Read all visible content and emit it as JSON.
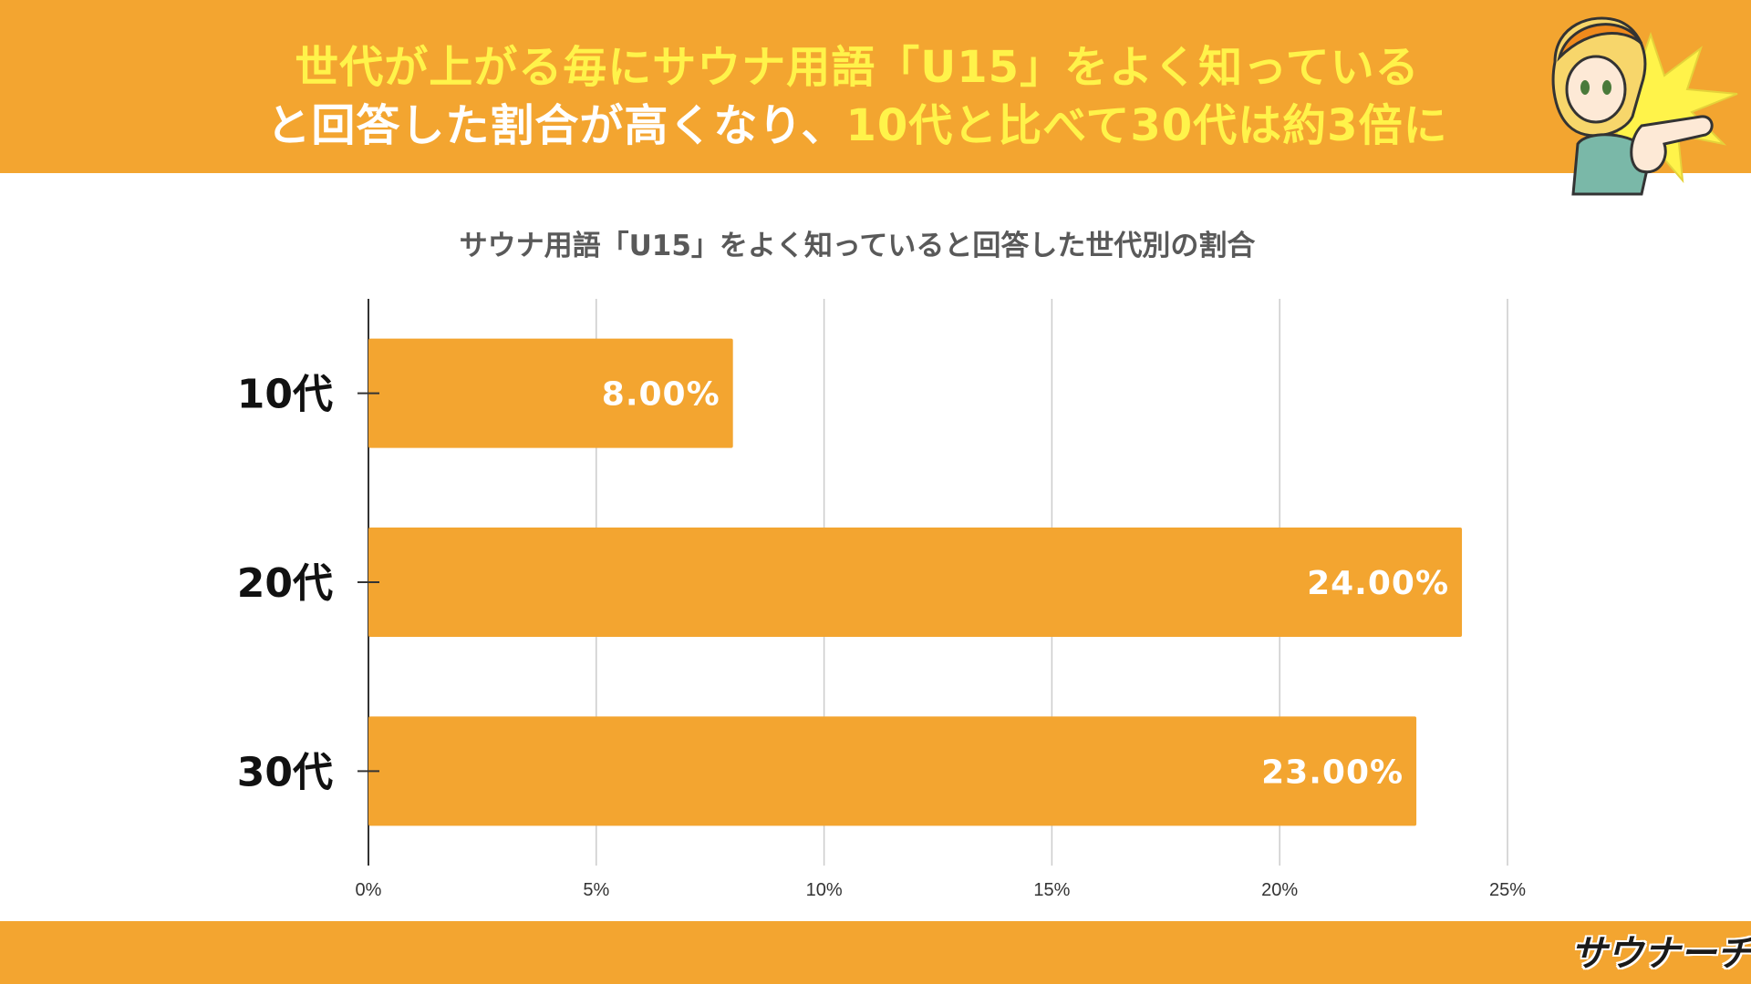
{
  "header": {
    "line1": "世代が上がる毎にサウナ用語「U15」をよく知っている",
    "line2_part1": "と回答した割合が高くなり、",
    "line2_part2": "10代と比べて30代は約3倍に"
  },
  "colors": {
    "brand_orange": "#f3a530",
    "headline_yellow": "#fff34a",
    "bar": "#f3a530"
  },
  "chart_data": {
    "type": "bar",
    "orientation": "horizontal",
    "title": "サウナ用語「U15」をよく知っていると回答した世代別の割合",
    "categories": [
      "10代",
      "20代",
      "30代"
    ],
    "values": [
      8.0,
      24.0,
      23.0
    ],
    "value_labels": [
      "8.00%",
      "24.00%",
      "23.00%"
    ],
    "xlim": [
      0,
      25
    ],
    "xticks": [
      0,
      5,
      10,
      15,
      20,
      25
    ],
    "xtick_labels": [
      "0%",
      "5%",
      "10%",
      "15%",
      "20%",
      "25%"
    ],
    "xlabel": "",
    "ylabel": "",
    "grid": true
  },
  "footer": {
    "logo_text": "サウナーチ"
  }
}
